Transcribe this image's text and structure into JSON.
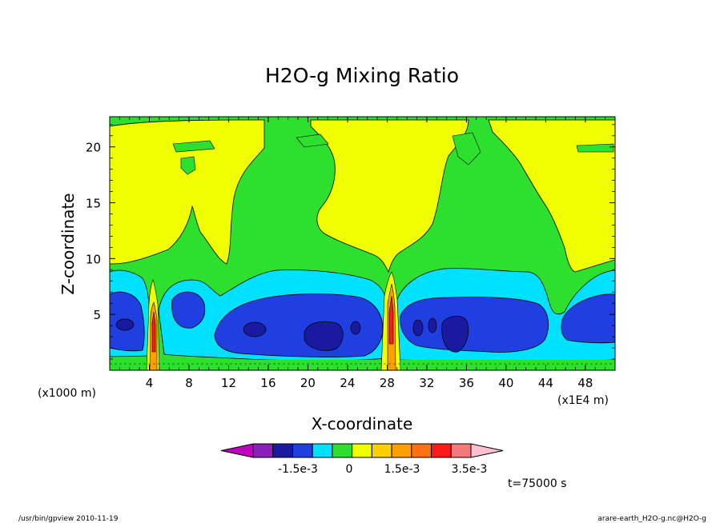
{
  "chart_data": {
    "type": "heatmap",
    "title": "H2O-g Mixing Ratio",
    "xlabel": "X-coordinate",
    "ylabel": "Z-coordinate",
    "x_unit_left": "(x1000 m)",
    "x_unit_right": "(x1E4 m)",
    "xlim": [
      0,
      51
    ],
    "ylim": [
      0,
      22.7
    ],
    "xticks": [
      "4",
      "8",
      "12",
      "16",
      "20",
      "24",
      "28",
      "32",
      "36",
      "40",
      "44",
      "48"
    ],
    "xtick_values": [
      4,
      8,
      12,
      16,
      20,
      24,
      28,
      32,
      36,
      40,
      44,
      48
    ],
    "yticks": [
      "5",
      "10",
      "15",
      "20"
    ],
    "ytick_values": [
      5,
      10,
      15,
      20
    ],
    "colorbar": {
      "colors": [
        "#c000c0",
        "#8a20b8",
        "#1a1aa0",
        "#1f3fe0",
        "#00e0ff",
        "#2ee02e",
        "#f0ff00",
        "#ffd000",
        "#ffa000",
        "#ff7010",
        "#ff1a1a",
        "#f27a7a",
        "#ffc0d0"
      ],
      "labels": [
        "-1.5e-3",
        "0",
        "1.5e-3",
        "3.5e-3"
      ]
    },
    "time_label": "t=75000 s"
  },
  "footer": {
    "left": "/usr/bin/gpview  2010-11-19",
    "right": "arare-earth_H2O-g.nc@H2O-g"
  }
}
